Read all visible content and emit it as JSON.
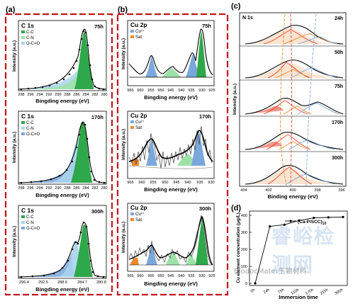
{
  "panels": [
    {
      "label": "(a)",
      "subplots": [
        {
          "title": "C 1s",
          "time": "75h",
          "legend": [
            "C-C",
            "C-N",
            "O-C=O"
          ],
          "xticks": [
            "298",
            "296",
            "294",
            "292",
            "290",
            "288",
            "286",
            "284",
            "282",
            "280"
          ],
          "xlabel": "Bingding energy (eV)",
          "ylabel": "Intensity (a.u.)"
        },
        {
          "title": "C 1s",
          "time": "170h",
          "legend": [
            "C-C",
            "C-N",
            "O-C=O"
          ],
          "xticks": [
            "298",
            "296",
            "294",
            "292",
            "290",
            "288",
            "286",
            "284",
            "282",
            "280"
          ],
          "xlabel": "Bingding energy (eV)",
          "ylabel": "Intensity (a.u.)"
        },
        {
          "title": "C 1s",
          "time": "300h",
          "legend": [
            "C-C",
            "C-N",
            "O-C=O"
          ],
          "xticks": [
            "296.4",
            "292.5",
            "288.6",
            "284.7",
            "280.8"
          ],
          "xlabel": "Bingding energy (eV)",
          "ylabel": "Intensity (a.u.)"
        }
      ]
    },
    {
      "label": "(b)",
      "subplots": [
        {
          "title": "Cu 2p",
          "time": "75h",
          "legend": [
            "Cu²⁺",
            "Sat."
          ],
          "xticks": [
            "965",
            "960",
            "955",
            "950",
            "945",
            "940",
            "935",
            "930",
            "925"
          ],
          "xlabel": "Bingding energy (eV)",
          "ylabel": "Intensity (a.u.)"
        },
        {
          "title": "Cu 2p",
          "time": "170h",
          "legend": [
            "Cu²⁺",
            "Sat"
          ],
          "xticks": [
            "965",
            "960",
            "955",
            "950",
            "945",
            "940",
            "935",
            "930"
          ],
          "xlabel": "Bingding energy (eV)",
          "ylabel": "Intensity (a.u.)"
        },
        {
          "title": "Cu 2p",
          "time": "300h",
          "legend": [
            "Cu²⁺",
            "Sat."
          ],
          "xticks": [
            "965",
            "960",
            "955",
            "950",
            "945",
            "940",
            "935",
            "930",
            "925"
          ],
          "xlabel": "Bingding energy (eV)",
          "ylabel": "Intensity (a.u.)"
        }
      ]
    },
    {
      "label": "(c)",
      "title": "N 1s",
      "times": [
        "24h",
        "50h",
        "75h",
        "170h",
        "300h"
      ],
      "xticks": [
        "404",
        "402",
        "400",
        "398",
        "396"
      ],
      "xlabel": "Binding energy (eV)",
      "ylabel": "Intensity (a.u.)"
    },
    {
      "label": "(d)",
      "legend": "(Ca-P/SCC)",
      "legend_sub": "10",
      "xlabel": "Immersion time",
      "ylabel": "Cu element concentration (μg/L)",
      "yticks": [
        "0",
        "100",
        "200",
        "300",
        "400"
      ]
    }
  ],
  "colors": {
    "border_red": "#c0141e",
    "green": "#2ea84a",
    "light_green": "#9ee1a8",
    "light_blue": "#a8d4ee",
    "blue_fill": "#7aa7dc",
    "orange": "#f08a2a",
    "red": "#e8402d",
    "peach": "#f3b37a",
    "gray_line": "#9a9a9a"
  },
  "watermarks": [
    "BiodocMater生物材料",
    "睿峪检测网"
  ],
  "chart_data": [
    {
      "type": "line",
      "panel": "d",
      "title": "",
      "xlabel": "Immersion time",
      "ylabel": "Cu element concentration (μg/L)",
      "categories": [
        "0h",
        "24h",
        "75h",
        "110h",
        "170h",
        "215h",
        "300h"
      ],
      "series": [
        {
          "name": "(Ca-P/SCC)10",
          "values": [
            0,
            335,
            345,
            370,
            385,
            388,
            390
          ]
        }
      ],
      "ylim": [
        0,
        400
      ]
    }
  ]
}
